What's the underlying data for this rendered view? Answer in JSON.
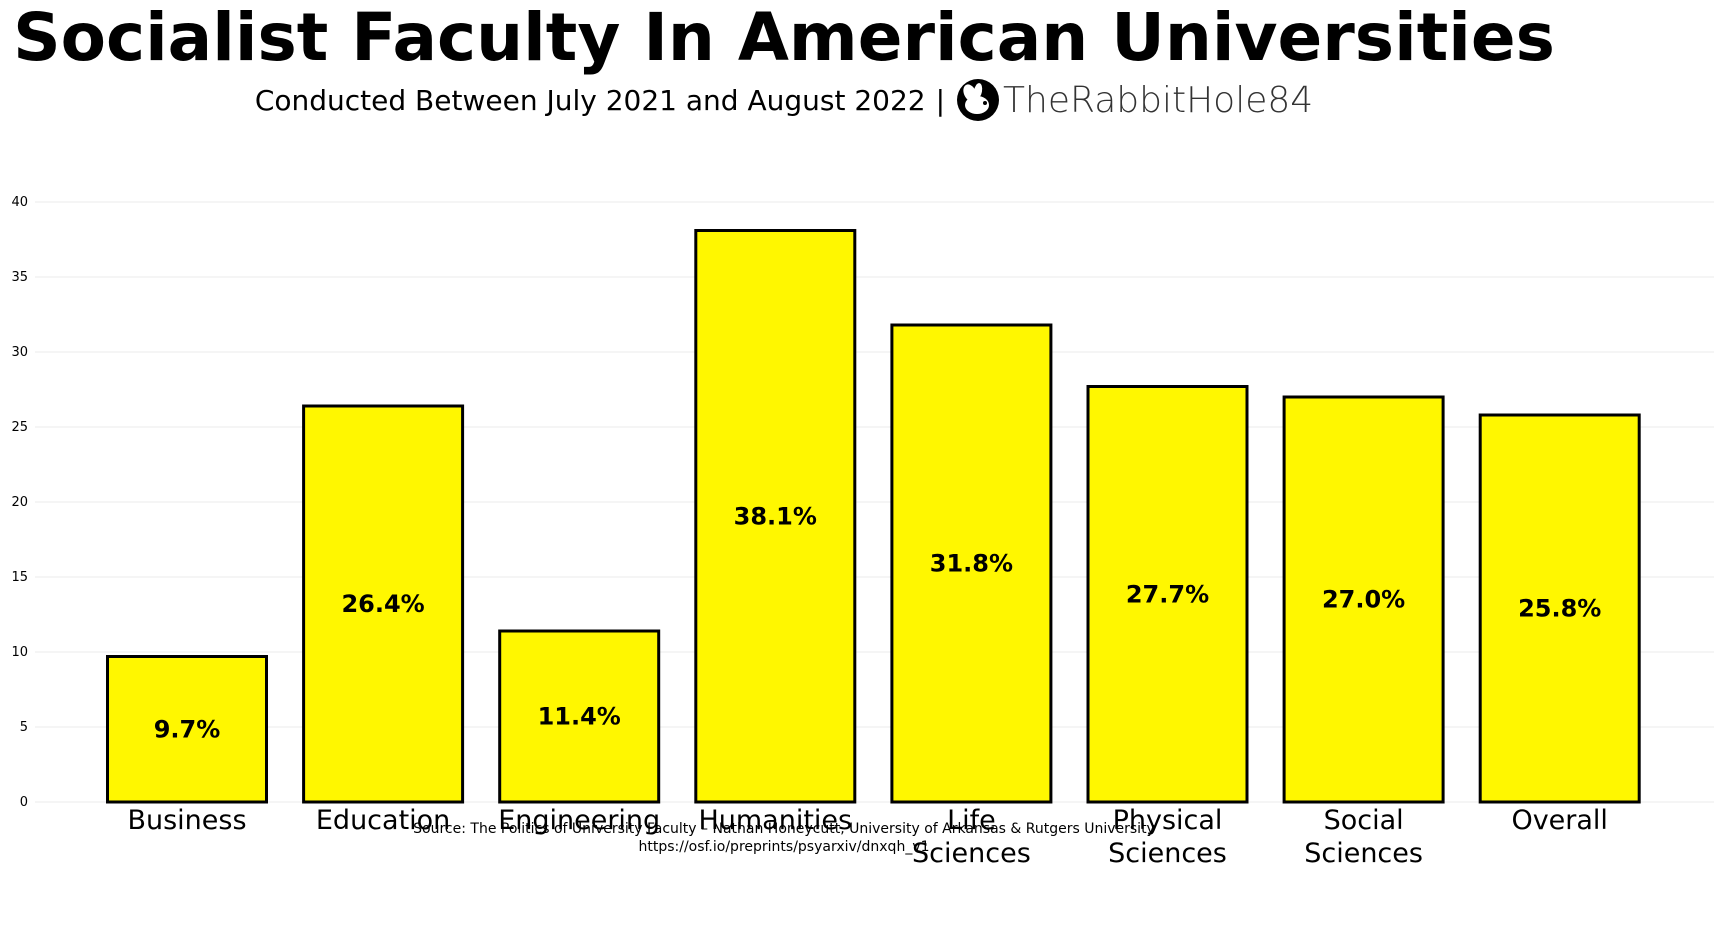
{
  "header": {
    "title": "Socialist Faculty In American Universities",
    "subtitle": "Conducted Between July 2021 and August 2022",
    "separator": "|",
    "brand": "TheRabbitHole84",
    "logo_icon": "rabbit-hole-logo-icon"
  },
  "footer": {
    "source": "Source: The Politics of University Faculty – Nathan Honeycutt, University of Arkansas & Rutgers University",
    "url": "https://osf.io/preprints/psyarxiv/dnxqh_v1"
  },
  "colors": {
    "bar_fill": "#FFF700",
    "bar_stroke": "#000000",
    "grid": "#EBEBEB",
    "text": "#000000"
  },
  "chart_data": {
    "type": "bar",
    "title": "Socialist Faculty In American Universities",
    "subtitle": "Conducted Between July 2021 and August 2022",
    "xlabel": "",
    "ylabel": "",
    "categories": [
      [
        "Business"
      ],
      [
        "Education"
      ],
      [
        "Engineering"
      ],
      [
        "Humanities"
      ],
      [
        "Life",
        "Sciences"
      ],
      [
        "Physical",
        "Sciences"
      ],
      [
        "Social",
        "Sciences"
      ],
      [
        "Overall"
      ]
    ],
    "values": [
      9.7,
      26.4,
      11.4,
      38.1,
      31.8,
      27.7,
      27.0,
      25.8
    ],
    "data_labels": [
      "9.7%",
      "26.4%",
      "11.4%",
      "38.1%",
      "31.8%",
      "27.7%",
      "27.0%",
      "25.8%"
    ],
    "yticks": [
      0,
      5,
      10,
      15,
      20,
      25,
      30,
      35,
      40
    ],
    "ylim": [
      0,
      40
    ],
    "grid": true,
    "legend": "none"
  }
}
